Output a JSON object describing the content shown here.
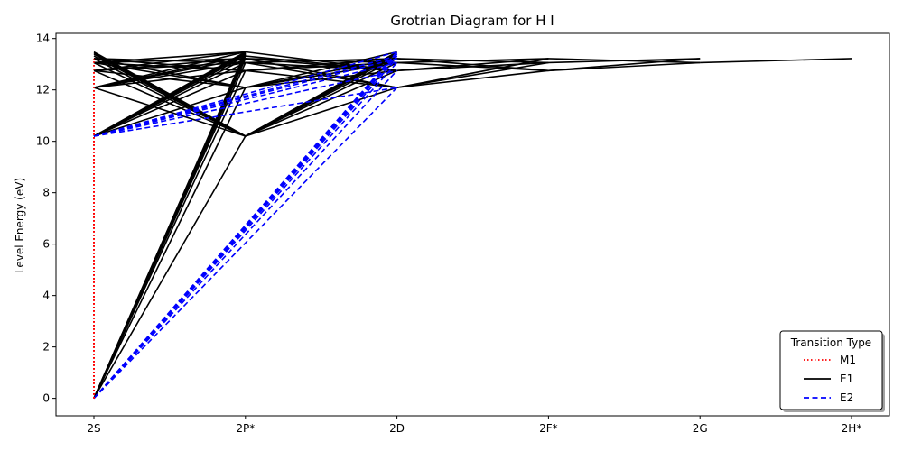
{
  "chart_data": {
    "type": "line",
    "title": "Grotrian Diagram for H I",
    "xlabel": "",
    "ylabel": "Level Energy (eV)",
    "categories": [
      "2S",
      "2P*",
      "2D",
      "2F*",
      "2G",
      "2H*"
    ],
    "ylim": [
      -0.68,
      14.2
    ],
    "yticks": [
      0,
      2,
      4,
      6,
      8,
      10,
      12
    ],
    "yticks_extra": [
      14
    ],
    "grid": false,
    "legend": {
      "title": "Transition Type",
      "placement": "lower-right",
      "entries": [
        {
          "name": "M1",
          "style": "dotted",
          "color": "#ff0000"
        },
        {
          "name": "E1",
          "style": "solid",
          "color": "#000000"
        },
        {
          "name": "E2",
          "style": "dashed",
          "color": "#0000ff"
        }
      ]
    },
    "levels": {
      "2S": [
        0.0,
        10.2,
        12.09,
        12.75,
        13.06,
        13.22,
        13.32,
        13.39,
        13.44,
        13.48
      ],
      "2P*": [
        10.2,
        12.09,
        12.75,
        13.06,
        13.22,
        13.32,
        13.39,
        13.44,
        13.48
      ],
      "2D": [
        12.09,
        12.75,
        13.06,
        13.22,
        13.32,
        13.39,
        13.44,
        13.48
      ],
      "2F*": [
        12.75,
        13.06,
        13.22
      ],
      "2G": [
        13.06,
        13.22
      ],
      "2H*": [
        13.22
      ]
    },
    "series": [
      {
        "name": "M1",
        "color": "#ff0000",
        "style": "dotted",
        "transitions": [
          [
            "2S",
            0.0,
            "2S",
            10.2
          ],
          [
            "2S",
            0.0,
            "2S",
            12.09
          ],
          [
            "2S",
            0.0,
            "2S",
            12.75
          ],
          [
            "2S",
            0.0,
            "2S",
            13.06
          ],
          [
            "2S",
            0.0,
            "2S",
            13.22
          ]
        ]
      },
      {
        "name": "E1",
        "color": "#000000",
        "style": "solid",
        "transitions": [
          [
            "2S",
            0.0,
            "2P*",
            10.2
          ],
          [
            "2S",
            0.0,
            "2P*",
            12.09
          ],
          [
            "2S",
            0.0,
            "2P*",
            12.75
          ],
          [
            "2S",
            0.0,
            "2P*",
            13.06
          ],
          [
            "2S",
            0.0,
            "2P*",
            13.22
          ],
          [
            "2S",
            0.0,
            "2P*",
            13.32
          ],
          [
            "2S",
            0.0,
            "2P*",
            13.39
          ],
          [
            "2S",
            0.0,
            "2P*",
            13.44
          ],
          [
            "2S",
            0.0,
            "2P*",
            13.48
          ],
          [
            "2S",
            10.2,
            "2P*",
            12.09
          ],
          [
            "2S",
            10.2,
            "2P*",
            12.75
          ],
          [
            "2S",
            10.2,
            "2P*",
            13.06
          ],
          [
            "2S",
            10.2,
            "2P*",
            13.22
          ],
          [
            "2S",
            10.2,
            "2P*",
            13.32
          ],
          [
            "2S",
            10.2,
            "2P*",
            13.39
          ],
          [
            "2S",
            10.2,
            "2P*",
            13.44
          ],
          [
            "2S",
            10.2,
            "2P*",
            13.48
          ],
          [
            "2S",
            12.09,
            "2P*",
            10.2
          ],
          [
            "2S",
            12.09,
            "2P*",
            12.75
          ],
          [
            "2S",
            12.09,
            "2P*",
            13.06
          ],
          [
            "2S",
            12.09,
            "2P*",
            13.22
          ],
          [
            "2S",
            12.09,
            "2P*",
            13.32
          ],
          [
            "2S",
            12.09,
            "2P*",
            13.48
          ],
          [
            "2S",
            12.75,
            "2P*",
            10.2
          ],
          [
            "2S",
            12.75,
            "2P*",
            12.09
          ],
          [
            "2S",
            12.75,
            "2P*",
            13.06
          ],
          [
            "2S",
            12.75,
            "2P*",
            13.22
          ],
          [
            "2S",
            12.75,
            "2P*",
            13.48
          ],
          [
            "2S",
            13.06,
            "2P*",
            10.2
          ],
          [
            "2S",
            13.06,
            "2P*",
            12.09
          ],
          [
            "2S",
            13.06,
            "2P*",
            12.75
          ],
          [
            "2S",
            13.06,
            "2P*",
            13.22
          ],
          [
            "2S",
            13.06,
            "2P*",
            13.48
          ],
          [
            "2S",
            13.22,
            "2P*",
            10.2
          ],
          [
            "2S",
            13.22,
            "2P*",
            12.09
          ],
          [
            "2S",
            13.22,
            "2P*",
            12.75
          ],
          [
            "2S",
            13.22,
            "2P*",
            13.06
          ],
          [
            "2S",
            13.32,
            "2P*",
            10.2
          ],
          [
            "2S",
            13.39,
            "2P*",
            10.2
          ],
          [
            "2S",
            13.44,
            "2P*",
            10.2
          ],
          [
            "2S",
            13.48,
            "2P*",
            10.2
          ],
          [
            "2P*",
            10.2,
            "2D",
            12.09
          ],
          [
            "2P*",
            10.2,
            "2D",
            12.75
          ],
          [
            "2P*",
            10.2,
            "2D",
            13.06
          ],
          [
            "2P*",
            10.2,
            "2D",
            13.22
          ],
          [
            "2P*",
            10.2,
            "2D",
            13.32
          ],
          [
            "2P*",
            10.2,
            "2D",
            13.39
          ],
          [
            "2P*",
            10.2,
            "2D",
            13.44
          ],
          [
            "2P*",
            10.2,
            "2D",
            13.48
          ],
          [
            "2P*",
            12.09,
            "2D",
            12.75
          ],
          [
            "2P*",
            12.09,
            "2D",
            13.06
          ],
          [
            "2P*",
            12.09,
            "2D",
            13.22
          ],
          [
            "2P*",
            12.09,
            "2D",
            13.48
          ],
          [
            "2P*",
            12.75,
            "2D",
            12.09
          ],
          [
            "2P*",
            12.75,
            "2D",
            13.06
          ],
          [
            "2P*",
            12.75,
            "2D",
            13.22
          ],
          [
            "2P*",
            13.06,
            "2D",
            12.09
          ],
          [
            "2P*",
            13.06,
            "2D",
            12.75
          ],
          [
            "2P*",
            13.06,
            "2D",
            13.22
          ],
          [
            "2P*",
            13.22,
            "2D",
            12.09
          ],
          [
            "2P*",
            13.22,
            "2D",
            12.75
          ],
          [
            "2P*",
            13.22,
            "2D",
            13.06
          ],
          [
            "2P*",
            13.32,
            "2D",
            12.75
          ],
          [
            "2P*",
            13.48,
            "2D",
            12.75
          ],
          [
            "2D",
            12.09,
            "2F*",
            12.75
          ],
          [
            "2D",
            12.09,
            "2F*",
            13.06
          ],
          [
            "2D",
            12.09,
            "2F*",
            13.22
          ],
          [
            "2D",
            12.75,
            "2F*",
            13.06
          ],
          [
            "2D",
            12.75,
            "2F*",
            13.22
          ],
          [
            "2D",
            13.06,
            "2F*",
            12.75
          ],
          [
            "2D",
            13.06,
            "2F*",
            13.22
          ],
          [
            "2D",
            13.22,
            "2F*",
            12.75
          ],
          [
            "2D",
            13.22,
            "2F*",
            13.06
          ],
          [
            "2F*",
            12.75,
            "2G",
            13.06
          ],
          [
            "2F*",
            12.75,
            "2G",
            13.22
          ],
          [
            "2F*",
            13.06,
            "2G",
            13.22
          ],
          [
            "2F*",
            13.22,
            "2G",
            13.06
          ],
          [
            "2G",
            13.06,
            "2H*",
            13.22
          ]
        ]
      },
      {
        "name": "E2",
        "color": "#0000ff",
        "style": "dashed",
        "transitions": [
          [
            "2S",
            0.0,
            "2D",
            12.09
          ],
          [
            "2S",
            0.0,
            "2D",
            12.75
          ],
          [
            "2S",
            0.0,
            "2D",
            13.06
          ],
          [
            "2S",
            0.0,
            "2D",
            13.22
          ],
          [
            "2S",
            0.0,
            "2D",
            13.32
          ],
          [
            "2S",
            0.0,
            "2D",
            13.39
          ],
          [
            "2S",
            0.0,
            "2D",
            13.44
          ],
          [
            "2S",
            0.0,
            "2D",
            13.48
          ],
          [
            "2S",
            10.2,
            "2D",
            12.09
          ],
          [
            "2S",
            10.2,
            "2D",
            12.75
          ],
          [
            "2S",
            10.2,
            "2D",
            13.06
          ],
          [
            "2S",
            10.2,
            "2D",
            13.22
          ],
          [
            "2S",
            10.2,
            "2D",
            13.32
          ],
          [
            "2S",
            10.2,
            "2D",
            13.48
          ]
        ]
      }
    ]
  }
}
